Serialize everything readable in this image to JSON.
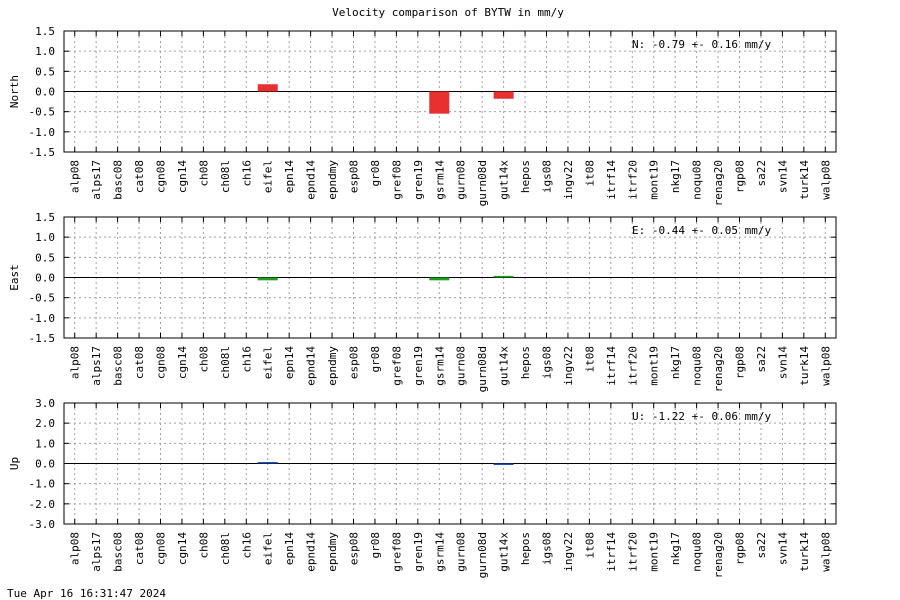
{
  "title": "Velocity comparison of BYTW in mm/y",
  "timestamp": "Tue Apr 16 16:31:47 2024",
  "chart_data": {
    "type": "bar",
    "categories": [
      "alp08",
      "alps17",
      "basc08",
      "cat08",
      "cgn08",
      "cgn14",
      "ch08",
      "ch08l",
      "ch16",
      "eifel",
      "epn14",
      "epnd14",
      "epndmy",
      "esp08",
      "gr08",
      "gref08",
      "gren19",
      "gsrm14",
      "gurn08",
      "gurn08d",
      "gut14x",
      "hepos",
      "igs08",
      "ingv22",
      "it08",
      "itrf14",
      "itrf20",
      "mont19",
      "nkg17",
      "noqu08",
      "renag20",
      "rgp08",
      "sa22",
      "svn14",
      "turk14",
      "walp08"
    ],
    "panels": [
      {
        "ylabel": "North",
        "ylim": [
          -1.5,
          1.5
        ],
        "yticks": [
          "1.5",
          "1.0",
          "0.5",
          "0.0",
          "-0.5",
          "-1.0",
          "-1.5"
        ],
        "color": "#e83030",
        "annotation": "N:  -0.79 +-  0.16 mm/y",
        "values": {
          "eifel": 0.18,
          "gsrm14": -0.55,
          "gut14x": -0.18
        }
      },
      {
        "ylabel": "East",
        "ylim": [
          -1.5,
          1.5
        ],
        "yticks": [
          "1.5",
          "1.0",
          "0.5",
          "0.0",
          "-0.5",
          "-1.0",
          "-1.5"
        ],
        "color": "#20a020",
        "annotation": "E:  -0.44 +-  0.05 mm/y",
        "values": {
          "eifel": -0.07,
          "gsrm14": -0.07,
          "gut14x": 0.04
        }
      },
      {
        "ylabel": "Up",
        "ylim": [
          -3.0,
          3.0
        ],
        "yticks": [
          "3.0",
          "2.0",
          "1.0",
          "0.0",
          "-1.0",
          "-2.0",
          "-3.0"
        ],
        "color": "#2050c0",
        "annotation": "U:  -1.22 +-  0.06 mm/y",
        "values": {
          "eifel": 0.03,
          "gut14x": -0.05
        }
      }
    ]
  }
}
